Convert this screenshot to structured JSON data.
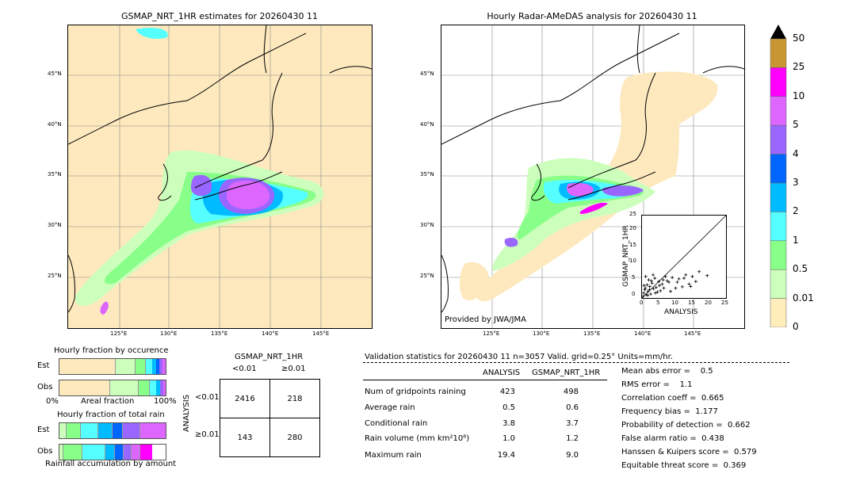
{
  "left_map": {
    "title": "GSMAP_NRT_1HR estimates for 20260430 11",
    "lat_labels": [
      "45°N",
      "40°N",
      "35°N",
      "30°N",
      "25°N"
    ],
    "lon_labels": [
      "125°E",
      "130°E",
      "135°E",
      "140°E",
      "145°E"
    ]
  },
  "right_map": {
    "title": "Hourly Radar-AMeDAS analysis for 20260430 11",
    "lat_labels": [
      "45°N",
      "40°N",
      "35°N",
      "30°N",
      "25°N"
    ],
    "lon_labels": [
      "125°E",
      "130°E",
      "135°E",
      "140°E",
      "145°E"
    ],
    "provider": "Provided by JWA/JMA"
  },
  "scatter": {
    "xlabel": "ANALYSIS",
    "ylabel": "GSMAP_NRT_1HR",
    "ticks": [
      "0",
      "5",
      "10",
      "15",
      "20",
      "25"
    ]
  },
  "colorbar": {
    "labels": [
      "50",
      "25",
      "10",
      "5",
      "4",
      "3",
      "2",
      "1",
      "0.5",
      "0.01",
      "0"
    ],
    "colors": [
      "#c89632",
      "#ff00ff",
      "#dd66ff",
      "#9966ff",
      "#0066ff",
      "#00bbff",
      "#55ffff",
      "#88ff88",
      "#ccffbb",
      "#ffeebb"
    ],
    "extend_color": "#000000"
  },
  "fraction_occurrence": {
    "title": "Hourly fraction by occurence",
    "rows": [
      "Est",
      "Obs"
    ],
    "xaxis": [
      "0%",
      "Areal fraction",
      "100%"
    ]
  },
  "fraction_total": {
    "title": "Hourly fraction of total rain",
    "rows": [
      "Est",
      "Obs"
    ],
    "xlabel": "Rainfall accumulation by amount"
  },
  "contingency": {
    "title": "GSMAP_NRT_1HR",
    "col_labels": [
      "<0.01",
      "≥0.01"
    ],
    "row_axis": "ANALYSIS",
    "row_labels": [
      "<0.01",
      "≥0.01"
    ],
    "cells": [
      [
        "2416",
        "218"
      ],
      [
        "143",
        "280"
      ]
    ]
  },
  "validation": {
    "header": "Validation statistics for 20260430 11  n=3057 Valid. grid=0.25° Units=mm/hr.",
    "col_analysis": "ANALYSIS",
    "col_gsmap": "GSMAP_NRT_1HR",
    "rows": [
      {
        "label": "Num of gridpoints raining",
        "a": "423",
        "g": "498"
      },
      {
        "label": "Average rain",
        "a": "0.5",
        "g": "0.6"
      },
      {
        "label": "Conditional rain",
        "a": "3.8",
        "g": "3.7"
      },
      {
        "label": "Rain volume (mm km²10⁶)",
        "a": "1.0",
        "g": "1.2"
      },
      {
        "label": "Maximum rain",
        "a": "19.4",
        "g": "9.0"
      }
    ],
    "scores": [
      "Mean abs error =    0.5",
      "RMS error =    1.1",
      "Correlation coeff =  0.665",
      "Frequency bias =  1.177",
      "Probability of detection =  0.662",
      "False alarm ratio =  0.438",
      "Hanssen & Kuipers score =  0.579",
      "Equitable threat score =  0.369"
    ]
  },
  "chart_data": {
    "type": "scatter",
    "title": "",
    "xlabel": "ANALYSIS",
    "ylabel": "GSMAP_NRT_1HR",
    "xlim": [
      0,
      25
    ],
    "ylim": [
      0,
      25
    ],
    "x": [
      0.3,
      0.5,
      0.8,
      1.0,
      1.2,
      1.5,
      1.8,
      2.0,
      2.3,
      2.6,
      3.0,
      3.4,
      3.8,
      4.2,
      4.6,
      5.0,
      5.5,
      6.0,
      6.5,
      7.0,
      7.5,
      8.0,
      9.0,
      10.0,
      11.0,
      12.0,
      13.0,
      14.0,
      15.0,
      16.0,
      17.0,
      19.4,
      0.6,
      1.1,
      1.7,
      2.2,
      2.8,
      3.3,
      4.0,
      5.2,
      6.3,
      8.5,
      10.5,
      12.5,
      14.5
    ],
    "y": [
      0.5,
      1.5,
      2.5,
      3.0,
      1.0,
      4.0,
      2.0,
      5.5,
      3.5,
      1.2,
      4.5,
      2.8,
      6.0,
      3.2,
      1.8,
      5.0,
      2.2,
      4.2,
      3.0,
      6.5,
      5.2,
      4.8,
      6.2,
      3.0,
      5.8,
      3.4,
      7.0,
      4.2,
      6.5,
      5.0,
      8.0,
      6.8,
      3.8,
      6.5,
      0.8,
      2.5,
      5.2,
      7.0,
      1.5,
      3.8,
      5.5,
      2.0,
      4.8,
      6.0,
      3.5
    ]
  }
}
